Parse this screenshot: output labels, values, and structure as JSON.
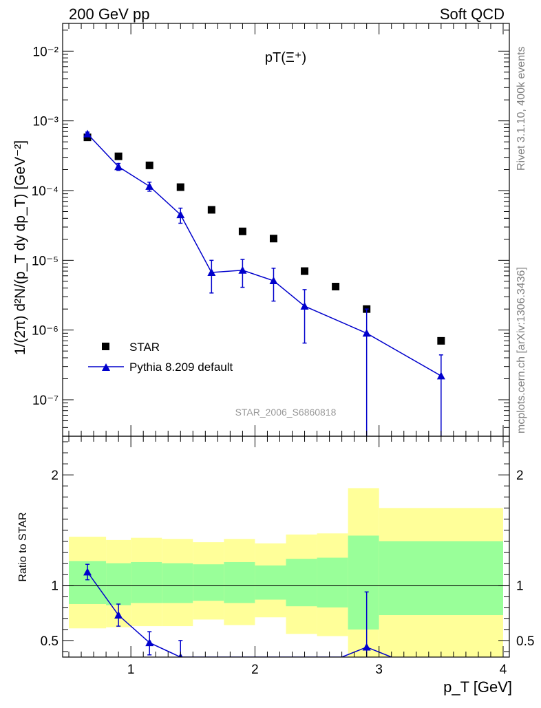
{
  "header": {
    "left": "200 GeV pp",
    "right": "Soft QCD"
  },
  "side": {
    "rivet": "Rivet 3.1.10,  400k events",
    "mcplots": "mcplots.cern.ch [arXiv:1306.3436]"
  },
  "chart_data": [
    {
      "type": "scatter",
      "title": "pT(Ξ⁺)",
      "ylabel": "1/(2π) d²N/(p_T dy dp_T) [GeV⁻²]",
      "yscale": "log",
      "ylim": [
        3e-08,
        0.025
      ],
      "xlim": [
        0.45,
        4.05
      ],
      "y_tick_labels": [
        "10⁻⁷",
        "10⁻⁶",
        "10⁻⁵",
        "10⁻⁴",
        "10⁻³",
        "10⁻²"
      ],
      "y_tick_values": [
        1e-07,
        1e-06,
        1e-05,
        0.0001,
        0.001,
        0.01
      ],
      "watermark": "STAR_2006_S6860818",
      "legend_position": "bottom-left",
      "series": [
        {
          "name": "STAR",
          "marker": "square",
          "color": "#000000",
          "x": [
            0.65,
            0.9,
            1.15,
            1.4,
            1.65,
            1.9,
            2.15,
            2.4,
            2.65,
            2.9,
            3.5
          ],
          "y": [
            0.00058,
            0.00031,
            0.00023,
            0.000112,
            5.3e-05,
            2.6e-05,
            2.05e-05,
            7e-06,
            4.2e-06,
            2e-06,
            7e-07
          ]
        },
        {
          "name": "Pythia 8.209 default",
          "marker": "triangle",
          "color": "#0000cc",
          "x": [
            0.65,
            0.9,
            1.15,
            1.4,
            1.65,
            1.9,
            2.15,
            2.4,
            2.9,
            3.5
          ],
          "y": [
            0.00065,
            0.00022,
            0.000115,
            4.5e-05,
            6.7e-06,
            7.2e-06,
            5.1e-06,
            2.2e-06,
            9e-07,
            2.2e-07
          ],
          "y_low": [
            0.00061,
            0.000195,
            9.8e-05,
            3.4e-05,
            3.4e-06,
            4.1e-06,
            2.6e-06,
            6.5e-07,
            1e-09,
            1e-09
          ],
          "y_high": [
            0.00069,
            0.000245,
            0.000132,
            5.6e-05,
            1e-05,
            1.03e-05,
            7.7e-06,
            3.8e-06,
            2e-06,
            4.4e-07
          ]
        }
      ]
    },
    {
      "type": "scatter",
      "ylabel": "Ratio to STAR",
      "xlabel": "p_T [GeV]",
      "ylim": [
        0.35,
        2.35
      ],
      "xlim": [
        0.45,
        4.05
      ],
      "x_ticks": [
        1,
        2,
        3,
        4
      ],
      "x_tick_labels": [
        "1",
        "2",
        "3",
        "4"
      ],
      "y_ticks": [
        0.5,
        1,
        2
      ],
      "y_tick_labels": [
        "0.5",
        "1",
        "2"
      ],
      "reference_line": 1,
      "bands": {
        "colors": {
          "inner": "#99ff99",
          "outer": "#ffff99"
        },
        "bins": [
          {
            "x0": 0.5,
            "x1": 0.8,
            "inner_low": 0.83,
            "inner_high": 1.22,
            "outer_low": 0.61,
            "outer_high": 1.44
          },
          {
            "x0": 0.8,
            "x1": 1.0,
            "inner_low": 0.82,
            "inner_high": 1.2,
            "outer_low": 0.62,
            "outer_high": 1.41
          },
          {
            "x0": 1.0,
            "x1": 1.25,
            "inner_low": 0.84,
            "inner_high": 1.21,
            "outer_low": 0.63,
            "outer_high": 1.43
          },
          {
            "x0": 1.25,
            "x1": 1.5,
            "inner_low": 0.84,
            "inner_high": 1.2,
            "outer_low": 0.63,
            "outer_high": 1.42
          },
          {
            "x0": 1.5,
            "x1": 1.75,
            "inner_low": 0.86,
            "inner_high": 1.19,
            "outer_low": 0.69,
            "outer_high": 1.39
          },
          {
            "x0": 1.75,
            "x1": 2.0,
            "inner_low": 0.84,
            "inner_high": 1.21,
            "outer_low": 0.64,
            "outer_high": 1.42
          },
          {
            "x0": 2.0,
            "x1": 2.25,
            "inner_low": 0.87,
            "inner_high": 1.18,
            "outer_low": 0.71,
            "outer_high": 1.38
          },
          {
            "x0": 2.25,
            "x1": 2.5,
            "inner_low": 0.81,
            "inner_high": 1.24,
            "outer_low": 0.56,
            "outer_high": 1.46
          },
          {
            "x0": 2.5,
            "x1": 2.75,
            "inner_low": 0.8,
            "inner_high": 1.25,
            "outer_low": 0.54,
            "outer_high": 1.47
          },
          {
            "x0": 2.75,
            "x1": 3.0,
            "inner_low": 0.6,
            "inner_high": 1.45,
            "outer_low": 0.35,
            "outer_high": 1.88
          },
          {
            "x0": 3.0,
            "x1": 4.0,
            "inner_low": 0.73,
            "inner_high": 1.4,
            "outer_low": 0.35,
            "outer_high": 1.7
          }
        ]
      },
      "series": [
        {
          "name": "Pythia 8.209 default",
          "marker": "triangle",
          "color": "#0000cc",
          "x": [
            0.65,
            0.9,
            1.15,
            1.4,
            2.9
          ],
          "y": [
            1.12,
            0.73,
            0.48,
            0.35,
            0.44
          ],
          "y_low": [
            1.05,
            0.63,
            0.37,
            0.25,
            0.01
          ],
          "y_high": [
            1.19,
            0.83,
            0.58,
            0.5,
            0.94
          ],
          "line_x": [
            0.65,
            0.9,
            1.15,
            1.4,
            2.7,
            2.9,
            3.1
          ],
          "line_y": [
            1.12,
            0.73,
            0.48,
            0.35,
            0.35,
            0.44,
            0.35
          ]
        }
      ]
    }
  ]
}
